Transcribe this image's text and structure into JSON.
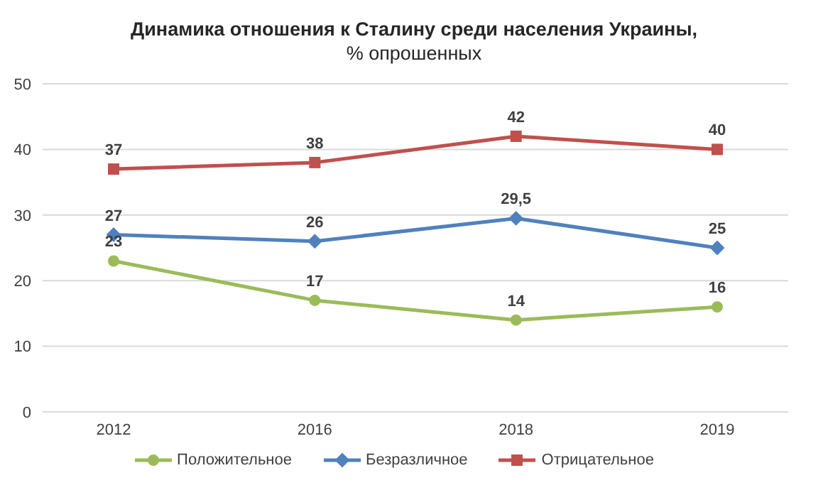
{
  "chart_data": {
    "type": "line",
    "title": "Динамика отношения к Сталину среди населения Украины,",
    "subtitle": "% опрошенных",
    "categories": [
      "2012",
      "2016",
      "2018",
      "2019"
    ],
    "series": [
      {
        "name": "Положительное",
        "color": "#9bbb59",
        "marker": "circle",
        "values": [
          23,
          17,
          14,
          16
        ],
        "value_labels": [
          "23",
          "17",
          "14",
          "16"
        ]
      },
      {
        "name": "Безразличное",
        "color": "#4f81bd",
        "marker": "diamond",
        "values": [
          27,
          26,
          29.5,
          25
        ],
        "value_labels": [
          "27",
          "26",
          "29,5",
          "25"
        ]
      },
      {
        "name": "Отрицательное",
        "color": "#c0504d",
        "marker": "square",
        "values": [
          37,
          38,
          42,
          40
        ],
        "value_labels": [
          "37",
          "38",
          "42",
          "40"
        ]
      }
    ],
    "ylim": [
      0,
      50
    ],
    "yticks": [
      0,
      10,
      20,
      30,
      40,
      50
    ],
    "grid": "y",
    "legend": "bottom",
    "line_style": "solid"
  }
}
